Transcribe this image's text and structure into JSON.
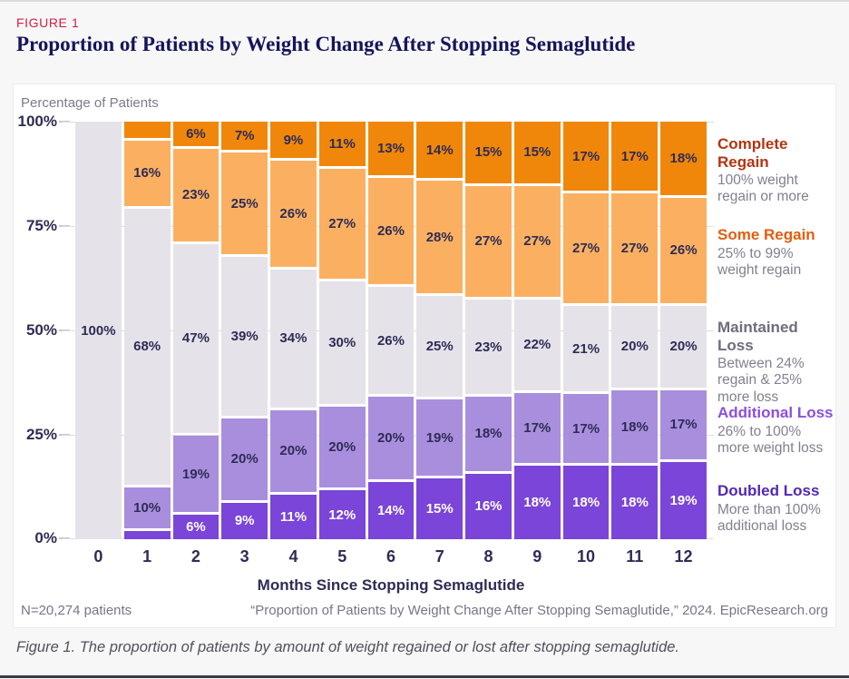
{
  "page": {
    "figure_label": "FIGURE 1",
    "title": "Proportion of Patients by Weight Change After Stopping Semaglutide",
    "caption": "Figure 1. The proportion of patients by amount of weight regained or lost after stopping semaglutide."
  },
  "colors": {
    "figure_label": "#d41f3c",
    "title_navy": "#16155a",
    "value_label_navy": "#2e2c55",
    "complete_regain_bar": "#f0870a",
    "some_regain_bar": "#fbb061",
    "maintained_loss_bar": "#e5e3e9",
    "additional_loss_bar": "#a98ede",
    "doubled_loss_bar": "#7a45d8",
    "legend_complete": "#b23411",
    "legend_some": "#e25d0e",
    "legend_maintained": "#6e6c7e",
    "legend_additional": "#8a4fe0",
    "legend_doubled": "#5128b5"
  },
  "chart": {
    "y_axis_title": "Percentage of Patients",
    "x_axis_title": "Months Since Stopping Semaglutide",
    "y_ticks": [
      "100%",
      "75%",
      "50%",
      "25%",
      "0%"
    ],
    "footer_left": "N=20,274 patients",
    "footer_right": "“Proportion of Patients by Weight Change After Stopping Semaglutide,” 2024. EpicResearch.org"
  },
  "legend": [
    {
      "title": "Complete Regain",
      "desc": "100% weight regain or more",
      "color": "#b23411"
    },
    {
      "title": "Some Regain",
      "desc": "25% to 99% weight regain",
      "color": "#e25d0e"
    },
    {
      "title": "Maintained Loss",
      "desc": "Between 24% regain & 25% more loss",
      "color": "#6e6c7e"
    },
    {
      "title": "Additional Loss",
      "desc": "26% to 100% more weight loss",
      "color": "#8a4fe0"
    },
    {
      "title": "Doubled Loss",
      "desc": "More than 100% additional loss",
      "color": "#5128b5"
    }
  ],
  "chart_data": {
    "type": "bar",
    "stacked": true,
    "stack_order": "top-to-bottom",
    "title": "Proportion of Patients by Weight Change After Stopping Semaglutide",
    "xlabel": "Months Since Stopping Semaglutide",
    "ylabel": "Percentage of Patients",
    "ylim": [
      0,
      100
    ],
    "grid": true,
    "legend_position": "right",
    "categories": [
      "0",
      "1",
      "2",
      "3",
      "4",
      "5",
      "6",
      "7",
      "8",
      "9",
      "10",
      "11",
      "12"
    ],
    "series": [
      {
        "key": "complete-regain",
        "name": "Complete Regain",
        "color": "#f0870a",
        "label_color": "navy",
        "values": [
          0,
          4,
          6,
          7,
          9,
          11,
          13,
          14,
          15,
          15,
          17,
          17,
          18
        ],
        "labels": [
          "",
          "",
          "6%",
          "7%",
          "9%",
          "11%",
          "13%",
          "14%",
          "15%",
          "15%",
          "17%",
          "17%",
          "18%"
        ]
      },
      {
        "key": "some-regain",
        "name": "Some Regain",
        "color": "#fbb061",
        "label_color": "navy",
        "values": [
          0,
          16,
          23,
          25,
          26,
          27,
          26,
          28,
          27,
          27,
          27,
          27,
          26
        ],
        "labels": [
          "",
          "16%",
          "23%",
          "25%",
          "26%",
          "27%",
          "26%",
          "28%",
          "27%",
          "27%",
          "27%",
          "27%",
          "26%"
        ]
      },
      {
        "key": "maintained-loss",
        "name": "Maintained Loss",
        "color": "#e5e3e9",
        "label_color": "navy",
        "values": [
          100,
          68,
          47,
          39,
          34,
          30,
          26,
          25,
          23,
          22,
          21,
          20,
          20
        ],
        "labels": [
          "100%",
          "68%",
          "47%",
          "39%",
          "34%",
          "30%",
          "26%",
          "25%",
          "23%",
          "22%",
          "21%",
          "20%",
          "20%"
        ]
      },
      {
        "key": "additional-loss",
        "name": "Additional Loss",
        "color": "#a98ede",
        "label_color": "navy",
        "values": [
          0,
          10,
          19,
          20,
          20,
          20,
          20,
          19,
          18,
          17,
          17,
          18,
          17
        ],
        "labels": [
          "",
          "10%",
          "19%",
          "20%",
          "20%",
          "20%",
          "20%",
          "19%",
          "18%",
          "17%",
          "17%",
          "18%",
          "17%"
        ]
      },
      {
        "key": "doubled-loss",
        "name": "Doubled Loss",
        "color": "#7a45d8",
        "label_color": "white",
        "values": [
          0,
          2,
          6,
          9,
          11,
          12,
          14,
          15,
          16,
          18,
          18,
          18,
          19
        ],
        "labels": [
          "",
          "",
          "6%",
          "9%",
          "11%",
          "12%",
          "14%",
          "15%",
          "16%",
          "18%",
          "18%",
          "18%",
          "19%"
        ]
      }
    ]
  }
}
